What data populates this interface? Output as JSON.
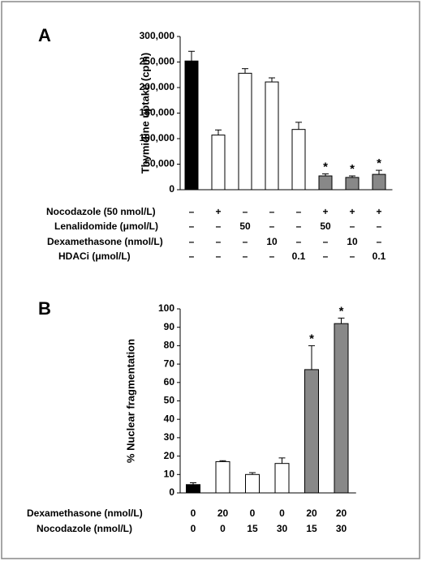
{
  "chart_data": [
    {
      "type": "bar",
      "panel": "A",
      "ylabel": "Thymidine uptake (cpm)",
      "values": [
        252000,
        107000,
        228000,
        211000,
        118000,
        27000,
        24000,
        30000
      ],
      "errors": [
        19000,
        10000,
        9000,
        8000,
        14000,
        4000,
        3000,
        8000
      ],
      "colors": [
        "#000000",
        "#ffffff",
        "#ffffff",
        "#ffffff",
        "#ffffff",
        "#888888",
        "#888888",
        "#888888"
      ],
      "significance": [
        {
          "index": 5,
          "label": "*"
        },
        {
          "index": 6,
          "label": "*"
        },
        {
          "index": 7,
          "label": "*"
        }
      ],
      "ylim": [
        0,
        300000
      ],
      "yticks": [
        0,
        {
          "value": 50000,
          "label": "50,000"
        },
        {
          "value": 100000,
          "label": "100,000"
        },
        {
          "value": 150000,
          "label": "150,000"
        },
        {
          "value": 200000,
          "label": "200,000"
        },
        {
          "value": 250000,
          "label": "250,000"
        },
        {
          "value": 300000,
          "label": "300,000"
        }
      ],
      "condition_table": [
        {
          "label": "Nocodazole (50 nmol/L)",
          "cells": [
            "–",
            "+",
            "–",
            "–",
            "–",
            "+",
            "+",
            "+"
          ]
        },
        {
          "label": "Lenalidomide (μmol/L)",
          "cells": [
            "–",
            "–",
            "50",
            "–",
            "–",
            "50",
            "–",
            "–"
          ]
        },
        {
          "label": "Dexamethasone (nmol/L)",
          "cells": [
            "–",
            "–",
            "–",
            "10",
            "–",
            "–",
            "10",
            "–"
          ]
        },
        {
          "label": "HDACi (μmol/L)",
          "cells": [
            "–",
            "–",
            "–",
            "–",
            "0.1",
            "–",
            "–",
            "0.1"
          ]
        }
      ]
    },
    {
      "type": "bar",
      "panel": "B",
      "ylabel": "% Nuclear fragmentation",
      "values": [
        4.5,
        17,
        10,
        16,
        67,
        92
      ],
      "errors": [
        1,
        0.5,
        1,
        3,
        13,
        3
      ],
      "colors": [
        "#000000",
        "#ffffff",
        "#ffffff",
        "#ffffff",
        "#888888",
        "#888888"
      ],
      "significance": [
        {
          "index": 4,
          "label": "*"
        },
        {
          "index": 5,
          "label": "*"
        }
      ],
      "ylim": [
        0,
        100
      ],
      "yticks": [
        0,
        10,
        20,
        30,
        40,
        50,
        60,
        70,
        80,
        90,
        100
      ],
      "condition_table": [
        {
          "label": "Dexamethasone (nmol/L)",
          "cells": [
            "0",
            "20",
            "0",
            "0",
            "20",
            "20"
          ]
        },
        {
          "label": "Nocodazole (nmol/L)",
          "cells": [
            "0",
            "0",
            "15",
            "30",
            "15",
            "30"
          ]
        }
      ]
    }
  ]
}
